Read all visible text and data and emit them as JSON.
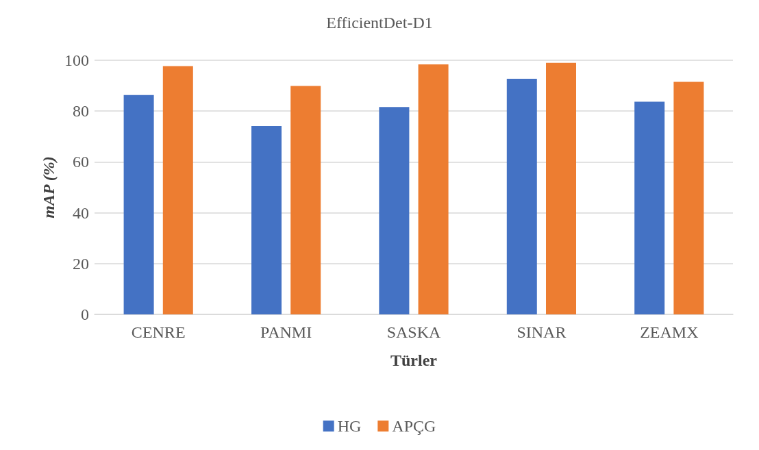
{
  "chart_data": {
    "type": "bar",
    "title": "EfficientDet-D1",
    "xlabel": "Türler",
    "ylabel": "mAP (%)",
    "categories": [
      "CENRE",
      "PANMI",
      "SASKA",
      "SINAR",
      "ZEAMX"
    ],
    "series": [
      {
        "name": "HG",
        "color": "#4472c4",
        "values": [
          86.3,
          74.1,
          81.6,
          92.7,
          83.7
        ]
      },
      {
        "name": "APÇG",
        "color": "#ed7d31",
        "values": [
          97.7,
          89.9,
          98.4,
          99.0,
          91.5
        ]
      }
    ],
    "ylim": [
      0,
      100
    ],
    "yticks": [
      0,
      20,
      40,
      60,
      80,
      100
    ],
    "grid": "y",
    "legend": "bottom"
  }
}
